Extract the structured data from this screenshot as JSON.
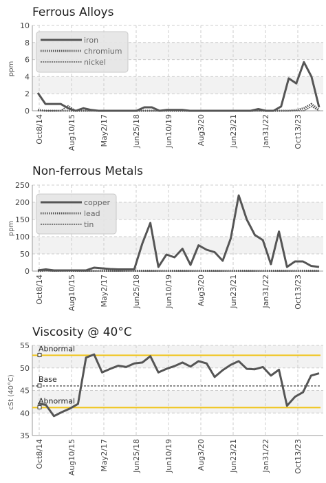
{
  "charts": [
    {
      "title": "Ferrous Alloys",
      "type": "line",
      "ylabel": "ppm",
      "ylim": [
        0,
        10
      ],
      "yticks": [
        0,
        2,
        4,
        6,
        8,
        10
      ],
      "xticks": [
        "Oct8/14",
        "Aug10/15",
        "May2/17",
        "Jun25/18",
        "Jun10/19",
        "Aug3/20",
        "Jun23/21",
        "Jan31/22",
        "Oct13/23"
      ],
      "grid": true,
      "legend": "top-left",
      "series": [
        {
          "name": "iron",
          "style": "solid",
          "values": [
            2.1,
            0.8,
            0.8,
            0.8,
            0.3,
            0,
            0.3,
            0.1,
            0,
            0,
            0,
            0,
            0,
            0,
            0.4,
            0.4,
            0,
            0.1,
            0.1,
            0.1,
            0,
            0,
            0,
            0,
            0,
            0,
            0,
            0,
            0,
            0.2,
            0,
            0,
            0.5,
            3.8,
            3.2,
            5.7,
            4.0,
            0.4
          ]
        },
        {
          "name": "chromium",
          "style": "dotted",
          "values": [
            0.1,
            0,
            0,
            0,
            0,
            0,
            0,
            0,
            0,
            0,
            0,
            0,
            0,
            0,
            0,
            0,
            0,
            0,
            0,
            0,
            0,
            0,
            0,
            0,
            0,
            0,
            0,
            0,
            0,
            0,
            0,
            0,
            0,
            0,
            0.1,
            0.3,
            0.8,
            0.1
          ]
        },
        {
          "name": "nickel",
          "style": "thin",
          "values": [
            0,
            0,
            0,
            0,
            0.6,
            0,
            0,
            0,
            0,
            0,
            0,
            0,
            0,
            0,
            0,
            0,
            0,
            0,
            0,
            0,
            0,
            0,
            0,
            0,
            0,
            0,
            0,
            0,
            0,
            0,
            0,
            0,
            0,
            0,
            0,
            0,
            0.5,
            0
          ]
        }
      ]
    },
    {
      "title": "Non-ferrous Metals",
      "type": "line",
      "ylabel": "ppm",
      "ylim": [
        0,
        250
      ],
      "yticks": [
        0,
        50,
        100,
        150,
        200,
        250
      ],
      "xticks": [
        "Oct8/14",
        "Aug10/15",
        "May2/17",
        "Jun25/18",
        "Jun10/19",
        "Aug3/20",
        "Jun23/21",
        "Jan31/22",
        "Oct13/23"
      ],
      "grid": true,
      "legend": "top-left",
      "series": [
        {
          "name": "copper",
          "style": "solid",
          "values": [
            2,
            5,
            2,
            2,
            2,
            2,
            2,
            10,
            8,
            6,
            5,
            5,
            5,
            80,
            140,
            12,
            48,
            40,
            65,
            18,
            75,
            62,
            55,
            30,
            95,
            220,
            150,
            105,
            90,
            20,
            115,
            12,
            28,
            28,
            15,
            12
          ]
        },
        {
          "name": "lead",
          "style": "dotted",
          "values": [
            0,
            2,
            1,
            1,
            1,
            1,
            1,
            1,
            1,
            1,
            1,
            1,
            1,
            1,
            1,
            1,
            1,
            1,
            1,
            1,
            1,
            1,
            1,
            1,
            1,
            1,
            1,
            1,
            1,
            1,
            1,
            1,
            1,
            1,
            1,
            1
          ]
        },
        {
          "name": "tin",
          "style": "thin",
          "values": [
            0,
            1,
            0,
            0,
            0,
            0,
            0,
            0,
            0,
            0,
            0,
            0,
            0,
            0,
            0,
            0,
            0,
            0,
            0,
            0,
            0,
            0,
            0,
            0,
            0,
            0,
            0,
            0,
            0,
            0,
            0,
            0,
            0,
            0,
            0,
            0
          ]
        }
      ]
    },
    {
      "title": "Viscosity @ 40°C",
      "type": "line",
      "ylabel": "cSt (40°C)",
      "ylim": [
        35,
        55
      ],
      "yticks": [
        35,
        40,
        45,
        50,
        55
      ],
      "xticks": [
        "Oct8/14",
        "Aug10/15",
        "May2/17",
        "Jun25/18",
        "Jun10/19",
        "Aug3/20",
        "Jun23/21",
        "Jan31/22",
        "Oct13/23"
      ],
      "grid": true,
      "reference_lines": [
        {
          "label": "Abnormal",
          "value": 52.8,
          "color": "#f0c419",
          "style": "solid"
        },
        {
          "label": "Base",
          "value": 46,
          "color": "#333333",
          "style": "dashed"
        },
        {
          "label": "Abnormal",
          "value": 41.2,
          "color": "#f0c419",
          "style": "solid"
        }
      ],
      "series": [
        {
          "style": "solid",
          "values": [
            42.1,
            41.8,
            39.3,
            40.2,
            41,
            42,
            52.3,
            53,
            49,
            49.8,
            50.5,
            50.2,
            51,
            51.2,
            52.6,
            49,
            49.8,
            50.4,
            51.2,
            50.3,
            51.5,
            51,
            48,
            49.5,
            50.7,
            51.5,
            49.8,
            49.7,
            50.2,
            48.3,
            49.6,
            41.6,
            43.6,
            44.6,
            48.3,
            48.8
          ]
        }
      ]
    }
  ],
  "colors": {
    "line": "#555555",
    "grid": "#cccccc",
    "band": "#f2f2f2",
    "reference": "#f0c419"
  }
}
